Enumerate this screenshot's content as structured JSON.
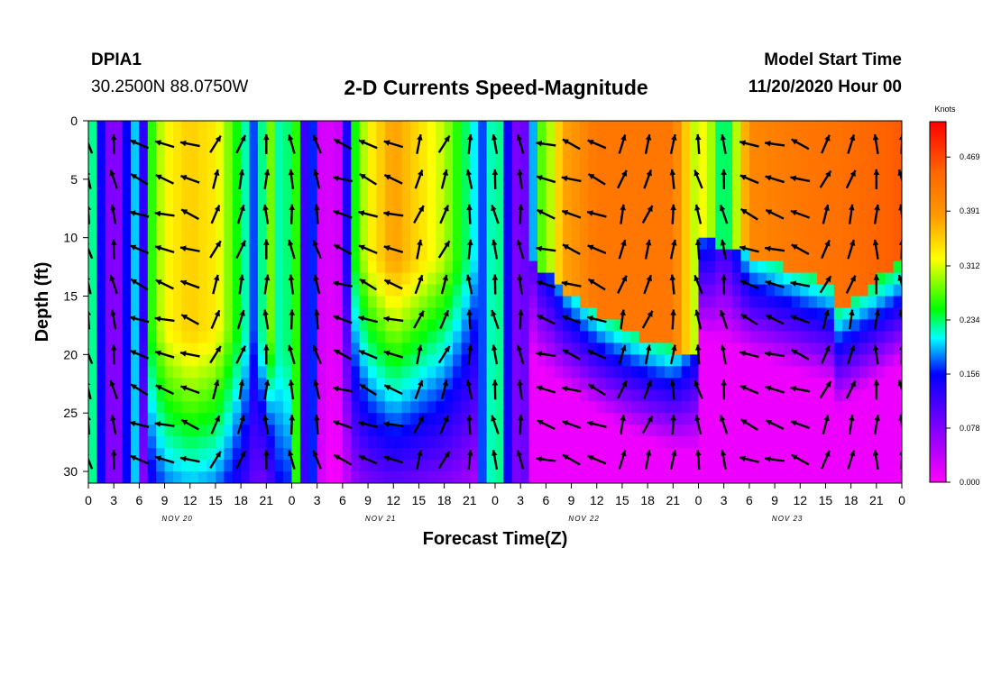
{
  "header": {
    "station": "DPIA1",
    "coords": "30.2500N 88.0750W",
    "title": "2-D Currents Speed-Magnitude",
    "model_label": "Model Start Time",
    "model_time": "11/20/2020 Hour 00"
  },
  "chart_data": {
    "type": "heatmap",
    "title": "2-D Currents Speed-Magnitude",
    "xlabel": "Forecast Time(Z)",
    "ylabel": "Depth (ft)",
    "x_ticks": [
      "0",
      "3",
      "6",
      "9",
      "12",
      "15",
      "18",
      "21",
      "0",
      "3",
      "6",
      "9",
      "12",
      "15",
      "18",
      "21",
      "0",
      "3",
      "6",
      "9",
      "12",
      "15",
      "18",
      "21",
      "0",
      "3",
      "6",
      "9",
      "12",
      "15",
      "18",
      "21",
      "0"
    ],
    "day_labels": [
      "NOV 20",
      "NOV 21",
      "NOV 22",
      "NOV 23"
    ],
    "y_ticks": [
      "0",
      "5",
      "10",
      "15",
      "20",
      "25",
      "30"
    ],
    "xlim_hours": [
      0,
      96
    ],
    "ylim_ft": [
      0,
      31
    ],
    "colorbar": {
      "title": "Knots",
      "ticks": [
        "0.000",
        "0.078",
        "0.156",
        "0.234",
        "0.312",
        "0.391",
        "0.469"
      ],
      "range": [
        0,
        0.52
      ]
    },
    "vector_hours": [
      0,
      3,
      6,
      9,
      12,
      15,
      18,
      21,
      24,
      27,
      30,
      33,
      36,
      39,
      42,
      45,
      48,
      51,
      54,
      57,
      60,
      63,
      66,
      69,
      72,
      75,
      78,
      81,
      84,
      87,
      90,
      93,
      96
    ],
    "vector_depths_ft": [
      2,
      5,
      8,
      11,
      14,
      17,
      20,
      23,
      26,
      29
    ],
    "grid": false,
    "legend": "colorbar right"
  }
}
